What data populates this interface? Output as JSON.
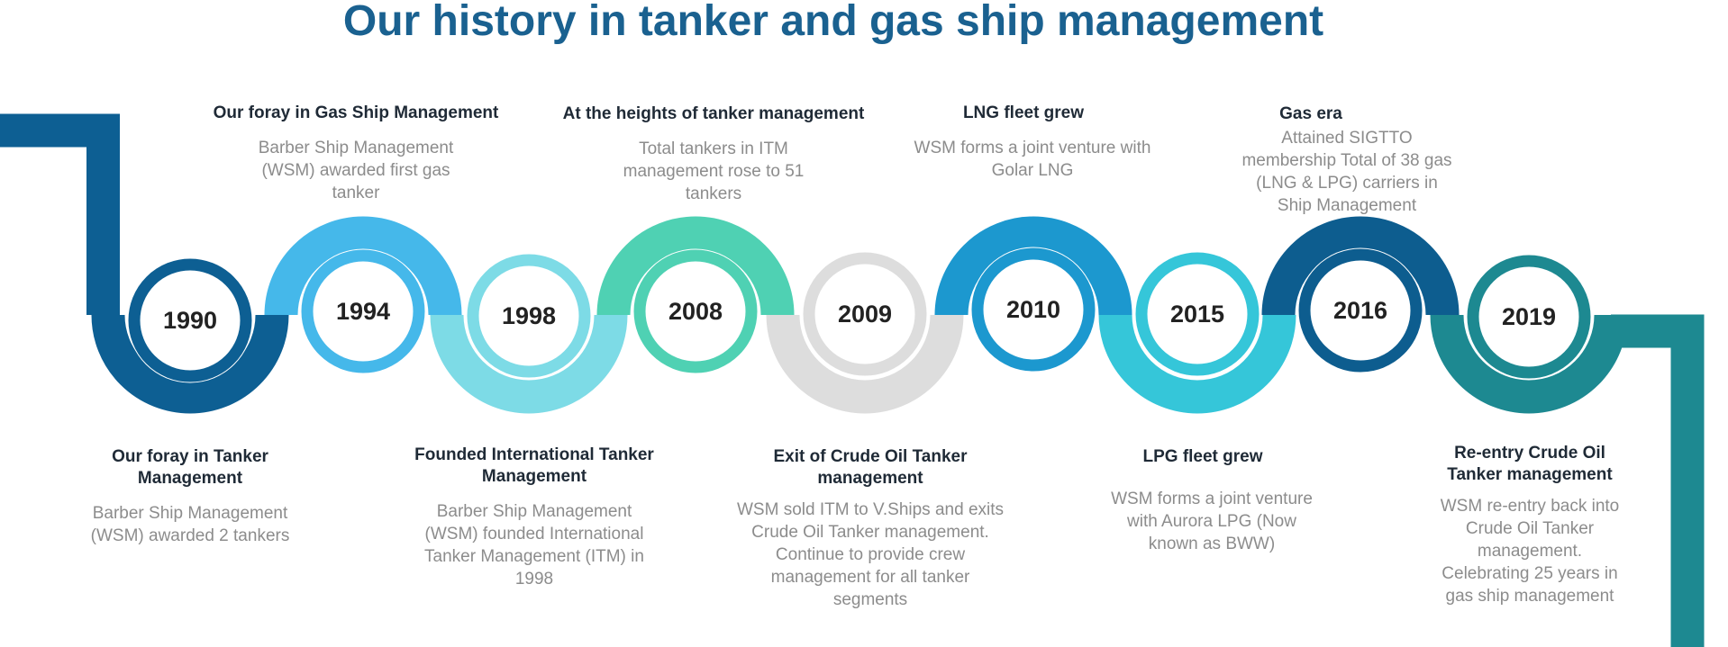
{
  "title": "Our history in tanker and gas ship management",
  "milestones": [
    {
      "year": "1990",
      "color": "#0d5f93",
      "heading": "Our foray in Tanker Management",
      "description": "Barber Ship Management (WSM) awarded 2 tankers"
    },
    {
      "year": "1994",
      "color": "#45b8ea",
      "heading": "Our foray in Gas Ship Management",
      "description": "Barber Ship Management (WSM) awarded first gas tanker"
    },
    {
      "year": "1998",
      "color": "#7ddbe6",
      "heading": "Founded International Tanker Management",
      "description": "Barber Ship Management (WSM) founded International Tanker Management (ITM) in 1998"
    },
    {
      "year": "2008",
      "color": "#4fd1b3",
      "heading": "At the heights of tanker management",
      "description": "Total tankers in ITM management rose to 51 tankers"
    },
    {
      "year": "2009",
      "color": "#dddddd",
      "heading": "Exit of Crude Oil Tanker management",
      "description": "WSM sold ITM to V.Ships and exits Crude Oil Tanker management. Continue to provide crew management for all tanker segments"
    },
    {
      "year": "2010",
      "color": "#1c98cf",
      "heading": "LNG fleet grew",
      "description": "WSM forms a joint venture with Golar LNG"
    },
    {
      "year": "2015",
      "color": "#35c6d9",
      "heading": "LPG fleet grew",
      "description": "WSM forms a joint venture with Aurora LPG (Now known as BWW)"
    },
    {
      "year": "2016",
      "color": "#0d5d8f",
      "heading": "Gas era",
      "description": "Attained SIGTTO membership Total of 38 gas (LNG & LPG) carriers in Ship Management"
    },
    {
      "year": "2019",
      "color": "#1d8991",
      "heading": "Re-entry Crude Oil Tanker management",
      "description": "WSM re-entry back into Crude Oil Tanker management. Celebrating 25 years in gas ship management"
    }
  ]
}
